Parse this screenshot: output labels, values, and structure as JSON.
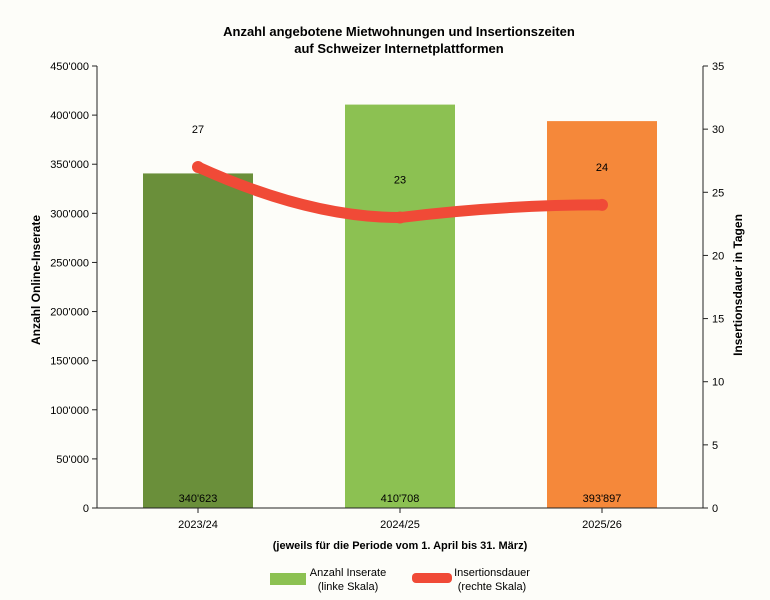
{
  "chart_data": {
    "type": "bar",
    "title_lines": [
      "Anzahl angebotene Mietwohnungen und Insertionszeiten",
      "auf Schweizer Internetplattformen"
    ],
    "categories": [
      "2023/24",
      "2024/25",
      "2025/26"
    ],
    "xlabel": "(jeweils für die Periode vom 1. April bis 31. März)",
    "ylabel": "Anzahl Online-Inserate",
    "y2label": "Insertionsdauer in Tagen",
    "ylim": [
      0,
      450000
    ],
    "y2lim": [
      0,
      35
    ],
    "yticks": [
      "0",
      "50'000",
      "100'000",
      "150'000",
      "200'000",
      "250'000",
      "300'000",
      "350'000",
      "400'000",
      "450'000"
    ],
    "y2ticks": [
      "0",
      "5",
      "10",
      "15",
      "20",
      "25",
      "30",
      "35"
    ],
    "series": [
      {
        "name": "Anzahl Inserate (linke Skala)",
        "legend_lines": [
          "Anzahl Inserate",
          "(linke Skala)"
        ],
        "type": "bar",
        "axis": "left",
        "values": [
          340623,
          410708,
          393897
        ],
        "labels": [
          "340'623",
          "410'708",
          "393'897"
        ],
        "colors": [
          "#6a8f3a",
          "#8cc152",
          "#f5883a"
        ],
        "legend_color": "#8cc152"
      },
      {
        "name": "Insertionsdauer (rechte Skala)",
        "legend_lines": [
          "Insertionsdauer",
          "(rechte Skala)"
        ],
        "type": "line",
        "axis": "right",
        "values": [
          27,
          23,
          24
        ],
        "labels": [
          "27",
          "23",
          "24"
        ],
        "color": "#f04a37"
      }
    ]
  }
}
